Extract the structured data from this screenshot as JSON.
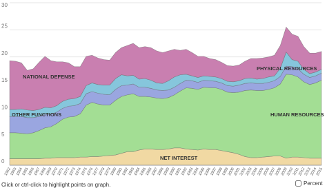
{
  "chart_data": {
    "type": "stacked-area",
    "categories": [
      "1962",
      "1963",
      "1964",
      "1965",
      "1966",
      "1967",
      "1968",
      "1969",
      "1970",
      "1971",
      "1972",
      "1973",
      "1974",
      "1975",
      "1976",
      "1977",
      "1978",
      "1979",
      "1980",
      "1981",
      "1982",
      "1983",
      "1984",
      "1985",
      "1986",
      "1987",
      "1988",
      "1989",
      "1990",
      "1991",
      "1992",
      "1993",
      "1994",
      "1995",
      "1996",
      "1997",
      "1998",
      "1999",
      "2000",
      "2001",
      "2002",
      "2003",
      "2004",
      "2005",
      "2006",
      "2007",
      "2008",
      "2009",
      "2010",
      "2011",
      "2012",
      "2013",
      "2014",
      "2015"
    ],
    "series": [
      {
        "name": "NET INTEREST",
        "color": "#f1d9a3",
        "values": [
          1.2,
          1.2,
          1.2,
          1.2,
          1.2,
          1.2,
          1.3,
          1.3,
          1.4,
          1.4,
          1.4,
          1.4,
          1.5,
          1.5,
          1.6,
          1.6,
          1.7,
          1.8,
          1.9,
          2.2,
          2.5,
          2.5,
          2.8,
          3.0,
          3.0,
          2.9,
          2.9,
          3.0,
          3.2,
          3.2,
          3.0,
          2.9,
          2.8,
          3.0,
          2.9,
          2.9,
          2.7,
          2.5,
          2.3,
          2.0,
          1.6,
          1.4,
          1.4,
          1.5,
          1.6,
          1.7,
          1.7,
          1.3,
          1.5,
          1.5,
          1.4,
          1.3,
          1.3,
          1.3
        ]
      },
      {
        "name": "HUMAN RESOURCES",
        "color": "#a3de94",
        "values": [
          4.8,
          4.8,
          4.7,
          4.6,
          4.8,
          5.2,
          5.6,
          5.8,
          6.3,
          7.1,
          7.5,
          7.6,
          8.0,
          9.6,
          10.0,
          9.7,
          9.4,
          9.3,
          10.1,
          10.5,
          10.5,
          10.7,
          9.9,
          9.7,
          9.6,
          9.5,
          9.4,
          9.5,
          9.8,
          10.5,
          11.3,
          11.3,
          11.2,
          11.4,
          11.4,
          11.4,
          11.3,
          11.0,
          11.1,
          11.5,
          12.2,
          12.5,
          12.4,
          12.3,
          12.4,
          12.6,
          13.3,
          15.5,
          15.2,
          14.8,
          14.0,
          13.6,
          13.9,
          14.4
        ]
      },
      {
        "name": "OTHER FUNCTIONS",
        "color": "#9aa6e0",
        "values": [
          3.0,
          3.0,
          3.1,
          3.0,
          2.8,
          2.6,
          2.5,
          2.3,
          2.1,
          2.0,
          2.0,
          2.0,
          1.9,
          2.1,
          2.0,
          2.0,
          2.0,
          1.9,
          2.0,
          2.0,
          1.8,
          1.8,
          1.7,
          1.7,
          1.6,
          1.5,
          1.5,
          1.4,
          1.4,
          1.4,
          1.4,
          1.4,
          1.3,
          1.3,
          1.3,
          1.2,
          1.2,
          1.2,
          1.2,
          1.3,
          1.3,
          1.3,
          1.3,
          1.3,
          1.3,
          1.3,
          1.4,
          1.5,
          1.5,
          1.5,
          1.4,
          1.3,
          1.3,
          1.3
        ]
      },
      {
        "name": "PHYSICAL RESOURCES",
        "color": "#86c6dc",
        "values": [
          1.3,
          1.3,
          1.4,
          1.4,
          1.3,
          1.3,
          1.3,
          1.2,
          1.2,
          1.3,
          1.3,
          1.3,
          1.3,
          1.5,
          1.6,
          1.6,
          1.7,
          1.8,
          2.0,
          2.0,
          1.7,
          1.6,
          1.5,
          1.6,
          1.5,
          1.3,
          1.3,
          1.7,
          1.9,
          1.6,
          1.1,
          0.9,
          0.9,
          0.8,
          0.8,
          0.8,
          0.8,
          0.8,
          0.8,
          0.8,
          0.9,
          0.9,
          0.8,
          0.9,
          1.0,
          0.9,
          1.5,
          2.6,
          1.3,
          1.4,
          0.9,
          0.7,
          0.7,
          0.7
        ]
      },
      {
        "name": "NATIONAL DEFENSE",
        "color": "#c97fb0",
        "values": [
          9.0,
          8.9,
          8.5,
          7.3,
          7.7,
          8.7,
          9.4,
          8.7,
          8.1,
          7.3,
          6.7,
          5.9,
          5.5,
          5.4,
          5.1,
          4.9,
          4.7,
          4.6,
          4.8,
          5.0,
          5.6,
          5.9,
          5.8,
          5.9,
          6.0,
          5.9,
          5.7,
          5.5,
          5.1,
          4.5,
          4.6,
          4.3,
          3.9,
          3.6,
          3.3,
          3.2,
          3.0,
          2.9,
          2.9,
          2.9,
          3.2,
          3.6,
          3.8,
          3.8,
          3.7,
          3.8,
          4.2,
          4.6,
          4.7,
          4.6,
          4.2,
          3.8,
          3.5,
          3.3
        ]
      }
    ],
    "ylim": [
      0,
      30
    ],
    "yticks": [
      0,
      5,
      10,
      15,
      20,
      25,
      30
    ],
    "grid": true
  },
  "ui": {
    "hint": "Click or ctrl-click to highlight points on graph.",
    "percent_label": "Percent"
  }
}
